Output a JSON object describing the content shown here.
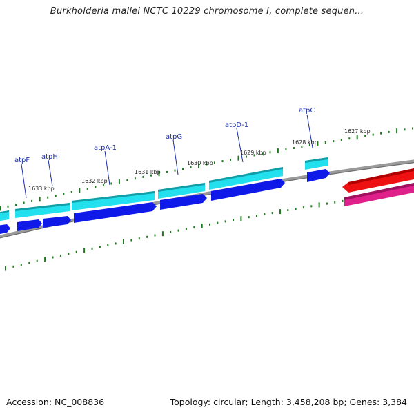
{
  "title": "Burkholderia mallei NCTC 10229 chromosome I, complete sequen...",
  "footer": {
    "accession": "Accession: NC_008836",
    "summary": "Topology: circular; Length: 3,458,208 bp; Genes: 3,384"
  },
  "colors": {
    "forward_cds": "#22e0ee",
    "reverse_cds": "#0f1ae8",
    "backbone": "#858585",
    "tick": "#1e7a1e",
    "label": "#1a2fa8",
    "red_feature": "#ee1111",
    "pink_feature": "#e0208a"
  },
  "kbp_labels": [
    "1633 kbp",
    "1632 kbp",
    "1631 kbp",
    "1630 kbp",
    "1629 kbp",
    "1628 kbp",
    "1627 kbp"
  ],
  "gene_labels": [
    "atpF",
    "atpH",
    "atpA-1",
    "atpG",
    "atpD-1",
    "atpC"
  ]
}
